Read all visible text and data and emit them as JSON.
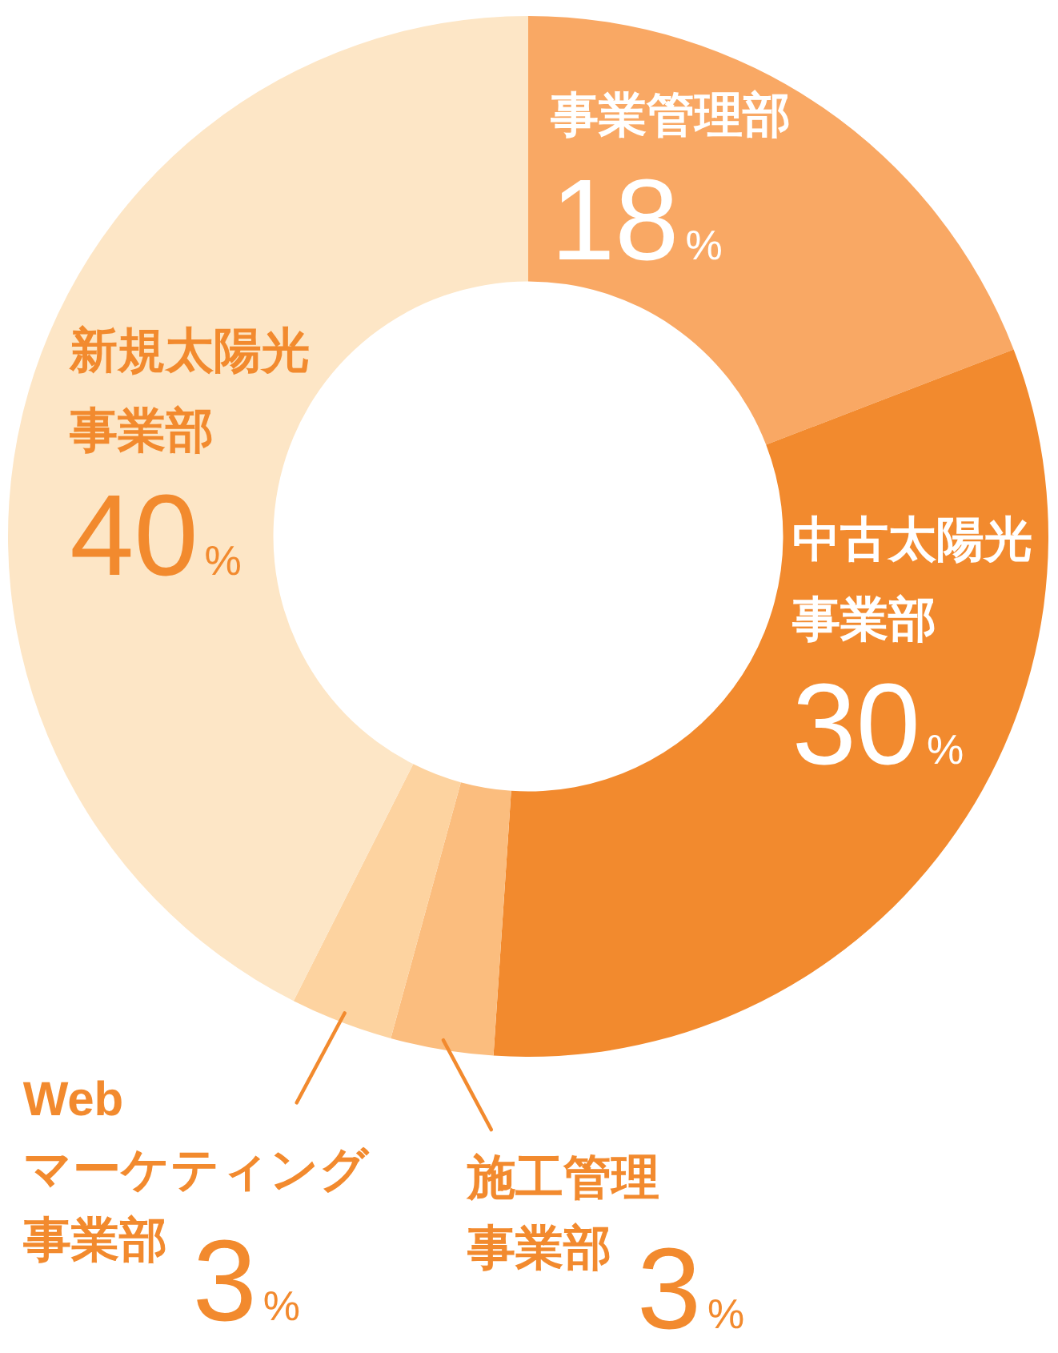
{
  "chart_data": {
    "type": "donut",
    "categories": [
      "事業管理部",
      "中古太陽光事業部",
      "施工管理事業部",
      "Webマーケティング事業部",
      "新規太陽光事業部"
    ],
    "values": [
      18,
      30,
      3,
      3,
      40
    ],
    "colors": [
      "#f9a864",
      "#f28a2e",
      "#fbbd7e",
      "#fdd3a0",
      "#fde6c6"
    ],
    "value_labels": [
      "18%",
      "30%",
      "3%",
      "3%",
      "40%"
    ]
  }
}
